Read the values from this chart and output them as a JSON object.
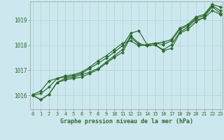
{
  "title": "Graphe pression niveau de la mer (hPa)",
  "xlabel_ticks": [
    "0",
    "1",
    "2",
    "3",
    "4",
    "5",
    "6",
    "7",
    "8",
    "9",
    "10",
    "11",
    "12",
    "13",
    "14",
    "15",
    "16",
    "17",
    "18",
    "19",
    "20",
    "21",
    "22",
    "23"
  ],
  "yticks": [
    1016,
    1017,
    1018,
    1019
  ],
  "ylim": [
    1015.45,
    1019.75
  ],
  "xlim": [
    -0.3,
    23.3
  ],
  "background_color": "#cce8ee",
  "grid_color": "#aad4d4",
  "line_color": "#2d6a2d",
  "marker": "D",
  "markersize": 2.2,
  "linewidth": 0.85,
  "series": [
    [
      1016.0,
      1015.83,
      1016.05,
      1016.52,
      1016.62,
      1016.68,
      1016.73,
      1016.88,
      1017.03,
      1017.28,
      1017.52,
      1017.72,
      1018.32,
      1018.03,
      1017.98,
      1018.02,
      1017.82,
      1018.02,
      1018.52,
      1018.72,
      1019.02,
      1019.08,
      1019.38,
      1019.23
    ],
    [
      1016.0,
      1015.83,
      1016.05,
      1016.52,
      1016.68,
      1016.73,
      1016.83,
      1016.93,
      1017.08,
      1017.33,
      1017.58,
      1017.83,
      1018.38,
      1018.08,
      1017.98,
      1018.02,
      1017.78,
      1017.88,
      1018.48,
      1018.63,
      1018.93,
      1019.13,
      1019.53,
      1019.28
    ],
    [
      1016.0,
      1016.08,
      1016.33,
      1016.68,
      1016.73,
      1016.78,
      1016.88,
      1017.08,
      1017.28,
      1017.48,
      1017.73,
      1017.98,
      1018.48,
      1018.58,
      1018.03,
      1018.08,
      1018.03,
      1018.18,
      1018.63,
      1018.78,
      1019.08,
      1019.18,
      1019.58,
      1019.38
    ],
    [
      1016.03,
      1016.18,
      1016.58,
      1016.68,
      1016.78,
      1016.83,
      1016.93,
      1017.13,
      1017.38,
      1017.58,
      1017.83,
      1018.08,
      1018.18,
      1017.98,
      1018.03,
      1018.08,
      1018.13,
      1018.23,
      1018.68,
      1018.83,
      1019.13,
      1019.23,
      1019.63,
      1019.53
    ]
  ]
}
